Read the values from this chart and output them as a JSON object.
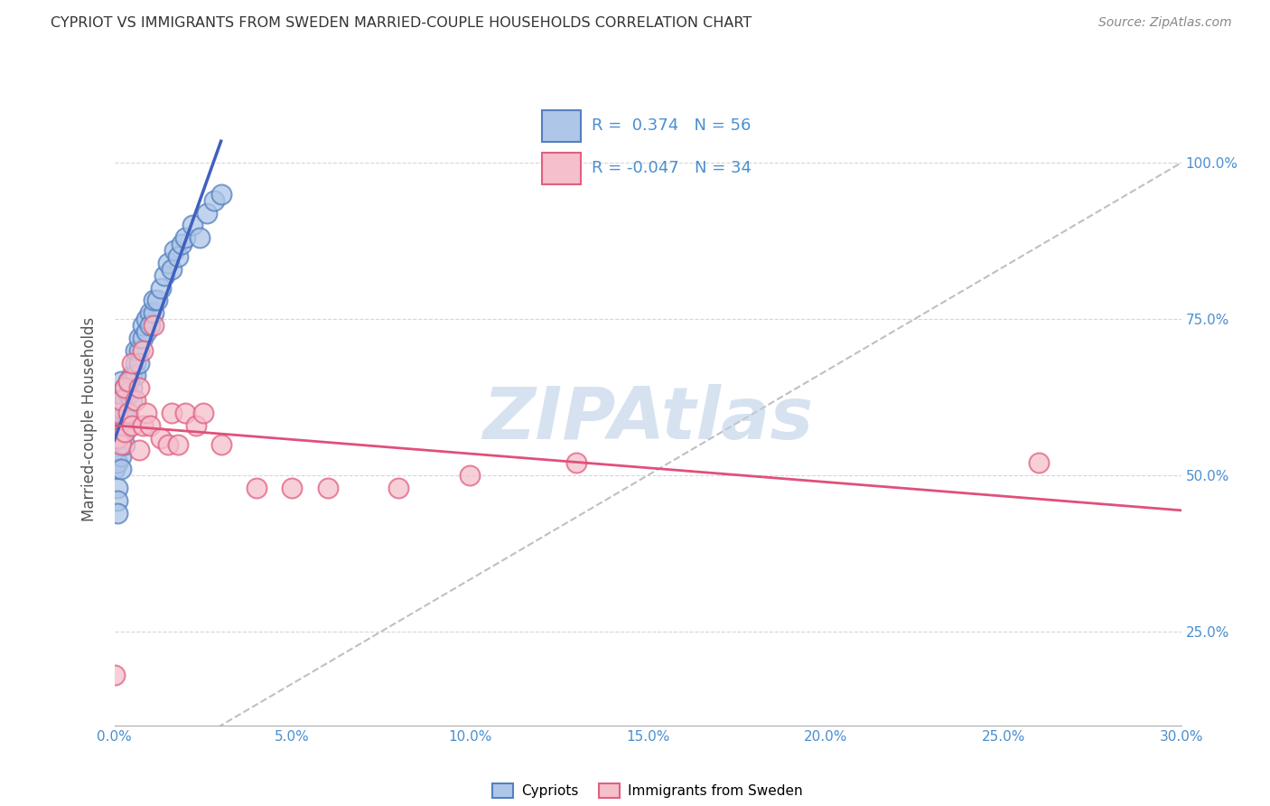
{
  "title": "CYPRIOT VS IMMIGRANTS FROM SWEDEN MARRIED-COUPLE HOUSEHOLDS CORRELATION CHART",
  "source": "Source: ZipAtlas.com",
  "ylabel": "Married-couple Households",
  "x_min": 0.0,
  "x_max": 0.3,
  "y_min": 0.1,
  "y_max": 1.08,
  "cypriot_R": 0.374,
  "cypriot_N": 56,
  "sweden_R": -0.047,
  "sweden_N": 34,
  "legend_labels": [
    "Cypriots",
    "Immigrants from Sweden"
  ],
  "blue_fill": "#aec6e8",
  "blue_edge": "#5580c0",
  "pink_fill": "#f5bfcc",
  "pink_edge": "#e06080",
  "blue_line": "#4060c0",
  "pink_line": "#e0507a",
  "grid_color": "#cccccc",
  "watermark_color": "#bdd0e8",
  "title_color": "#333333",
  "stat_color": "#4a8fd0",
  "cypriot_x": [
    0.0,
    0.0,
    0.001,
    0.001,
    0.001,
    0.001,
    0.001,
    0.001,
    0.001,
    0.002,
    0.002,
    0.002,
    0.002,
    0.002,
    0.002,
    0.002,
    0.002,
    0.003,
    0.003,
    0.003,
    0.003,
    0.003,
    0.004,
    0.004,
    0.004,
    0.005,
    0.005,
    0.005,
    0.006,
    0.006,
    0.006,
    0.007,
    0.007,
    0.007,
    0.008,
    0.008,
    0.009,
    0.009,
    0.01,
    0.01,
    0.011,
    0.011,
    0.012,
    0.013,
    0.014,
    0.015,
    0.016,
    0.017,
    0.018,
    0.019,
    0.02,
    0.022,
    0.024,
    0.026,
    0.028,
    0.03
  ],
  "cypriot_y": [
    0.54,
    0.51,
    0.56,
    0.58,
    0.6,
    0.52,
    0.48,
    0.46,
    0.44,
    0.58,
    0.6,
    0.62,
    0.55,
    0.53,
    0.51,
    0.63,
    0.65,
    0.6,
    0.62,
    0.64,
    0.57,
    0.55,
    0.63,
    0.65,
    0.59,
    0.66,
    0.64,
    0.62,
    0.68,
    0.66,
    0.7,
    0.7,
    0.72,
    0.68,
    0.72,
    0.74,
    0.73,
    0.75,
    0.76,
    0.74,
    0.76,
    0.78,
    0.78,
    0.8,
    0.82,
    0.84,
    0.83,
    0.86,
    0.85,
    0.87,
    0.88,
    0.9,
    0.88,
    0.92,
    0.94,
    0.95
  ],
  "sweden_x": [
    0.0,
    0.001,
    0.001,
    0.002,
    0.002,
    0.003,
    0.003,
    0.004,
    0.004,
    0.005,
    0.005,
    0.006,
    0.007,
    0.007,
    0.008,
    0.008,
    0.009,
    0.01,
    0.011,
    0.013,
    0.015,
    0.016,
    0.018,
    0.02,
    0.023,
    0.025,
    0.03,
    0.04,
    0.05,
    0.06,
    0.08,
    0.1,
    0.13,
    0.26
  ],
  "sweden_y": [
    0.18,
    0.56,
    0.6,
    0.55,
    0.62,
    0.57,
    0.64,
    0.6,
    0.65,
    0.58,
    0.68,
    0.62,
    0.54,
    0.64,
    0.58,
    0.7,
    0.6,
    0.58,
    0.74,
    0.56,
    0.55,
    0.6,
    0.55,
    0.6,
    0.58,
    0.6,
    0.55,
    0.48,
    0.48,
    0.48,
    0.48,
    0.5,
    0.52,
    0.52
  ],
  "y_tick_vals": [
    0.25,
    0.5,
    0.75,
    1.0
  ],
  "x_tick_vals": [
    0.0,
    0.05,
    0.1,
    0.15,
    0.2,
    0.25,
    0.3
  ]
}
